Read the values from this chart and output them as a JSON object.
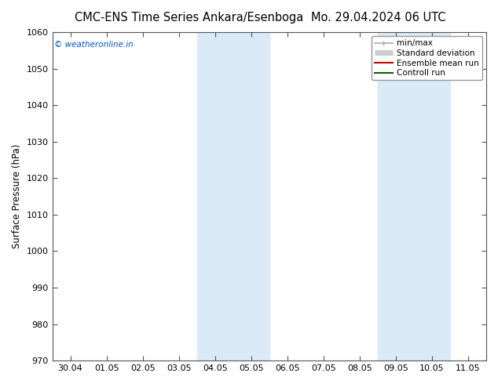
{
  "title_left": "CMC-ENS Time Series Ankara/Esenboga",
  "title_right": "Mo. 29.04.2024 06 UTC",
  "ylabel": "Surface Pressure (hPa)",
  "ylim": [
    970,
    1060
  ],
  "yticks": [
    970,
    980,
    990,
    1000,
    1010,
    1020,
    1030,
    1040,
    1050,
    1060
  ],
  "x_tick_labels": [
    "30.04",
    "01.05",
    "02.05",
    "03.05",
    "04.05",
    "05.05",
    "06.05",
    "07.05",
    "08.05",
    "09.05",
    "10.05",
    "11.05"
  ],
  "n_xticks": 12,
  "shaded_columns": [
    4,
    5,
    9,
    10
  ],
  "shade_color": "#daeaf7",
  "watermark": "© weatheronline.in",
  "watermark_color": "#0055cc",
  "legend_entries": [
    {
      "label": "min/max",
      "color": "#aaaaaa",
      "lw": 1.2
    },
    {
      "label": "Standard deviation",
      "color": "#cccccc",
      "lw": 5
    },
    {
      "label": "Ensemble mean run",
      "color": "#cc0000",
      "lw": 1.5
    },
    {
      "label": "Controll run",
      "color": "#006600",
      "lw": 1.5
    }
  ],
  "bg_color": "#ffffff",
  "plot_bg_color": "#ffffff",
  "title_fontsize": 10.5,
  "tick_fontsize": 8,
  "ylabel_fontsize": 8.5,
  "legend_fontsize": 7.5
}
